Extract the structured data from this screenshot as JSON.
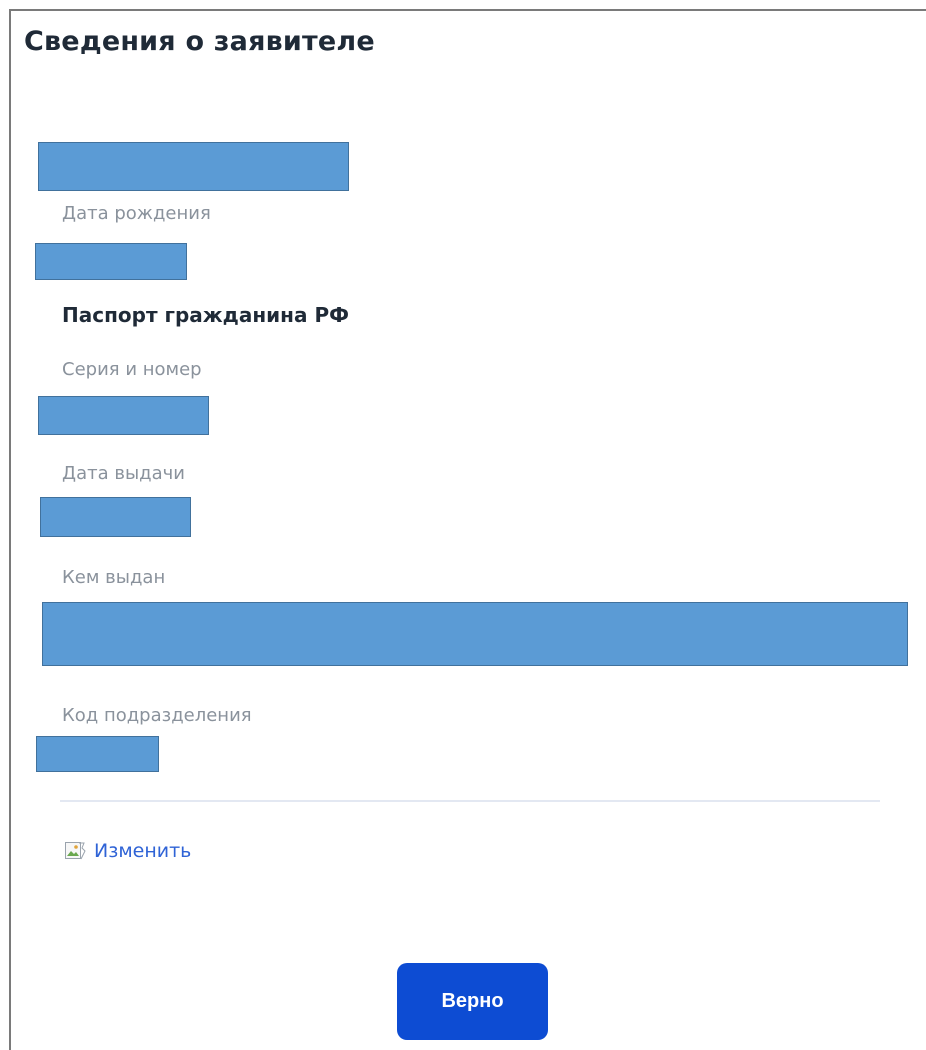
{
  "form": {
    "title": "Сведения о заявителе",
    "birth_date_label": "Дата рождения",
    "passport_section_title": "Паспорт гражданина РФ",
    "series_number_label": "Серия и номер",
    "issue_date_label": "Дата выдачи",
    "issued_by_label": "Кем выдан",
    "division_code_label": "Код подразделения",
    "redaction_color": "#5b9bd5"
  },
  "actions": {
    "change_link_label": "Изменить",
    "change_icon": "broken-image-icon",
    "confirm_button_label": "Верно",
    "confirm_button_color": "#0d4cd3"
  }
}
